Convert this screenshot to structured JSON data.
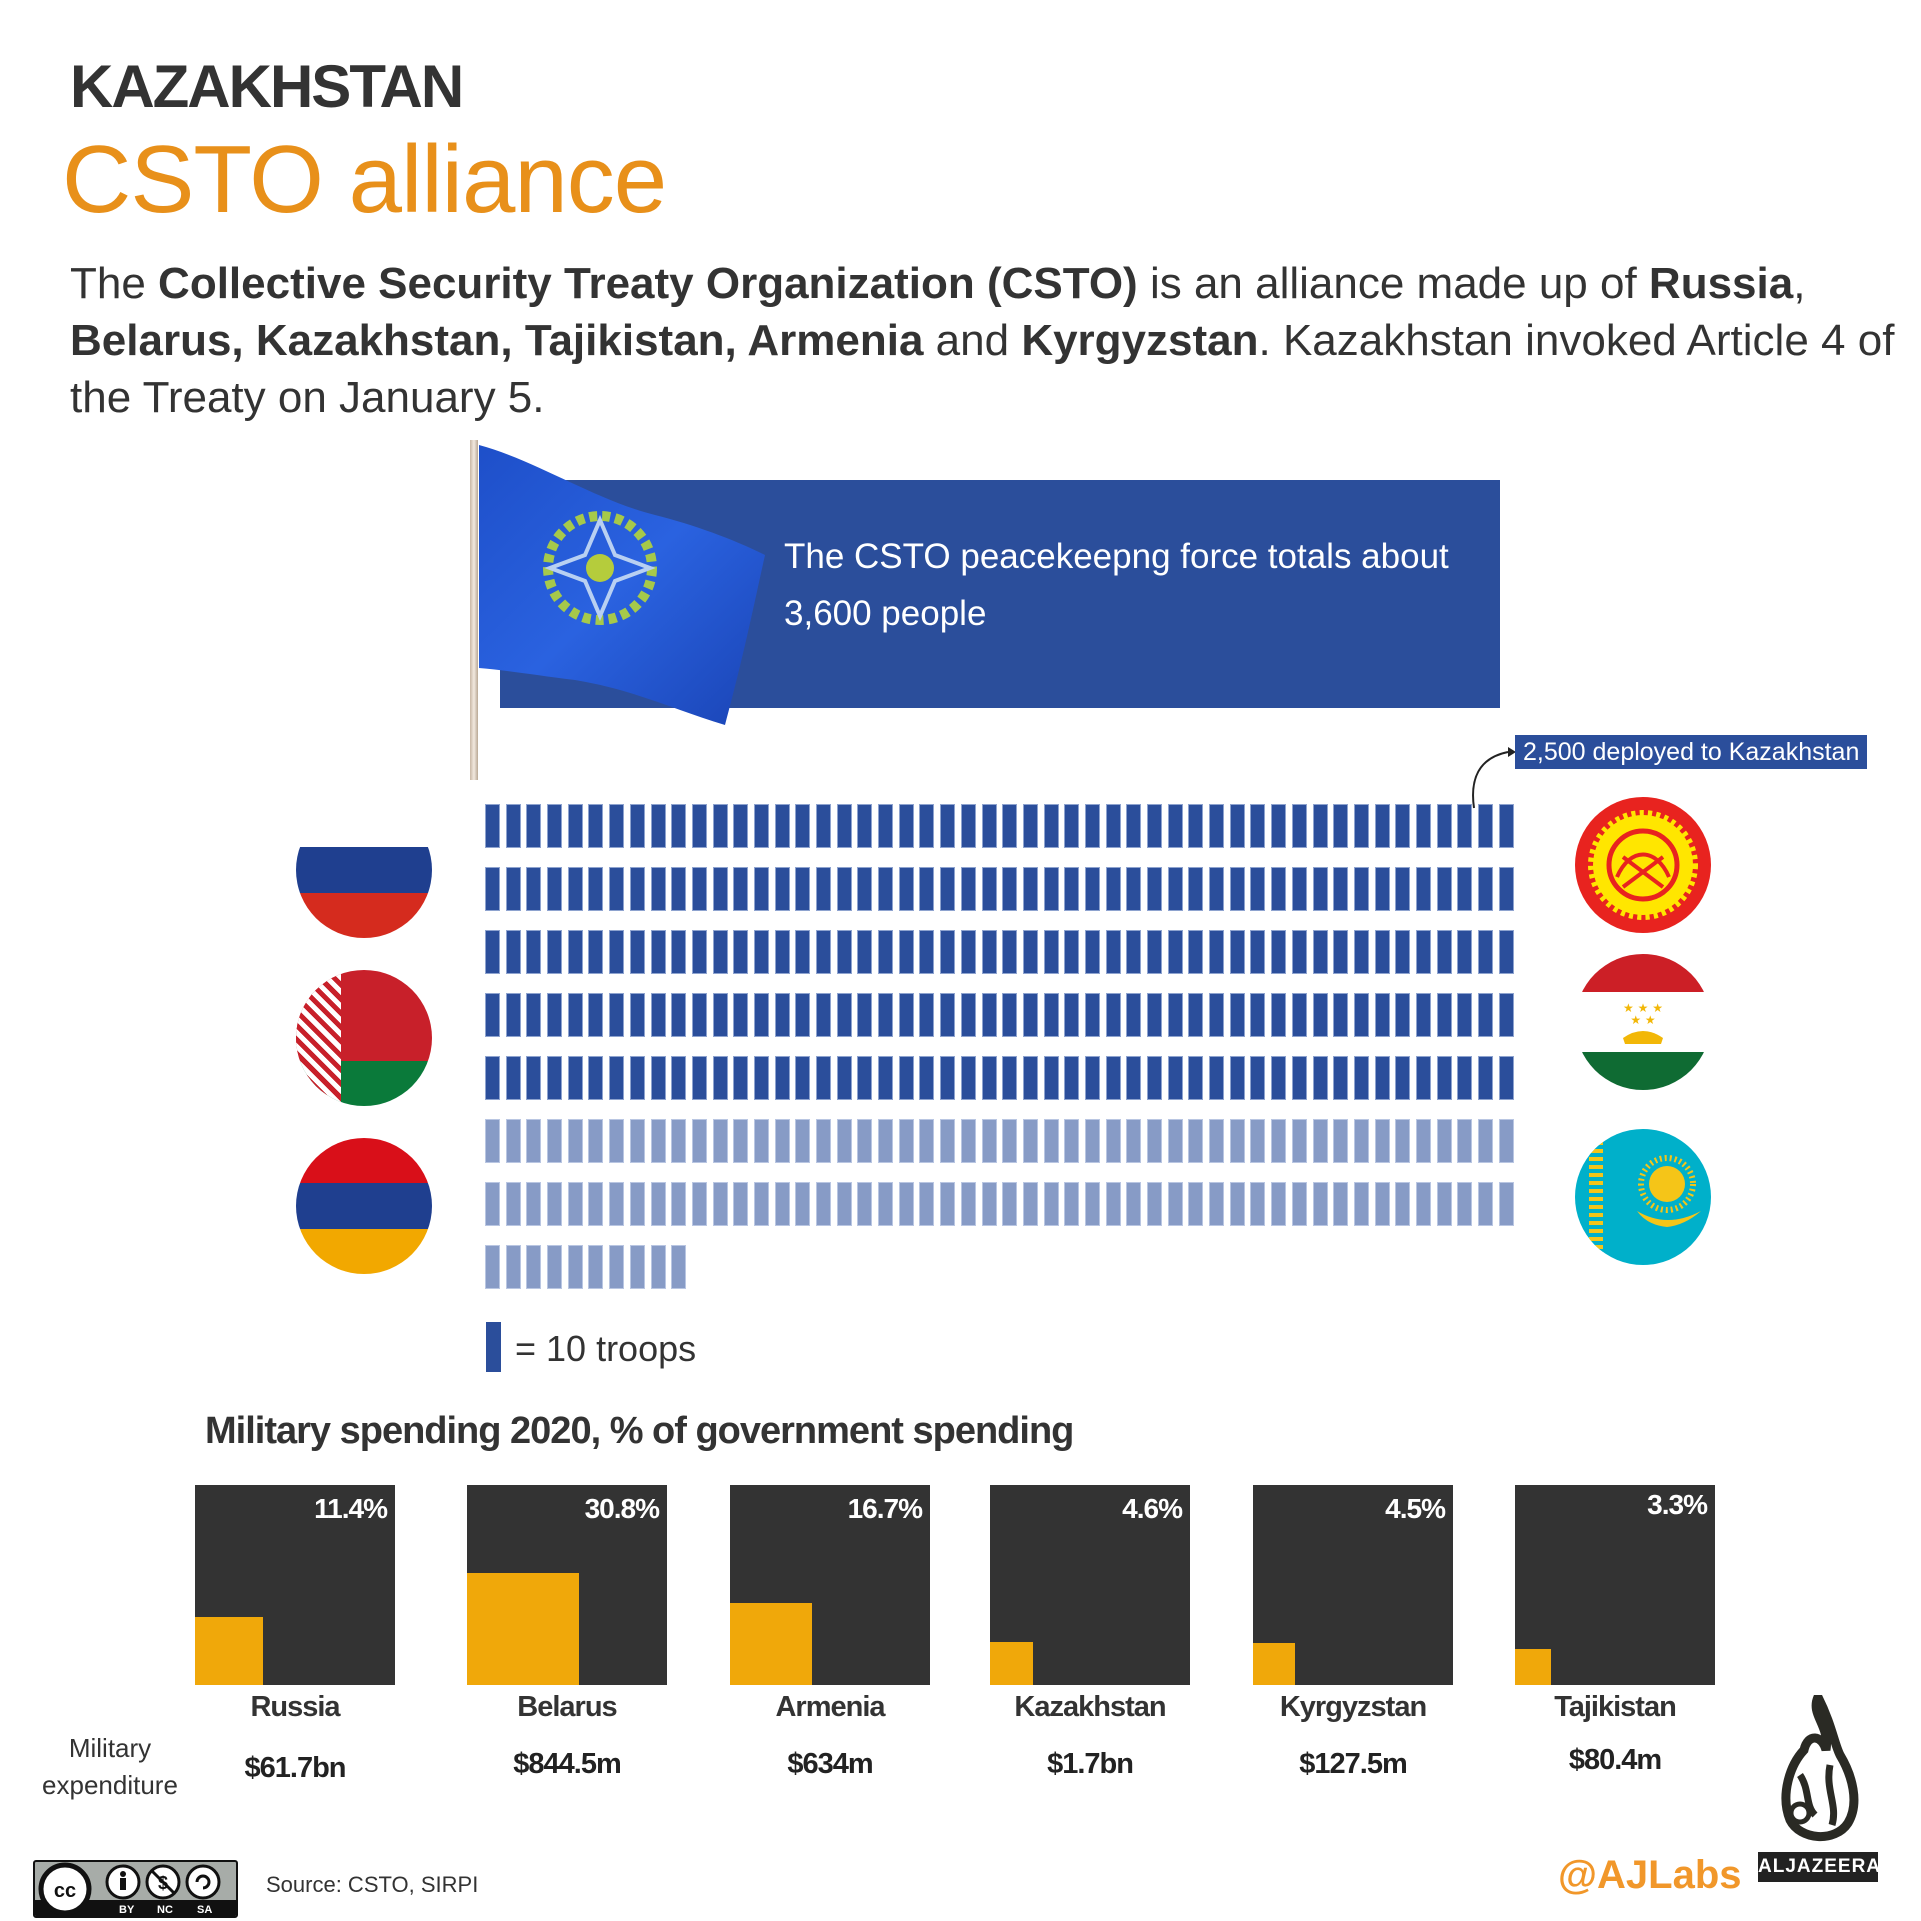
{
  "header": {
    "kicker": "KAZAKHSTAN",
    "title": "CSTO alliance"
  },
  "intro": {
    "p1": "The ",
    "b1": "Collective Security Treaty Organization (CSTO)",
    "p2": " is an alliance made up of ",
    "b2": "Russia",
    "p3": ", ",
    "b3": "Belarus, Kazakhstan, Tajikistan, Armenia",
    "p4": " and ",
    "b4": "Kyrgyzstan",
    "p5": ". Kazakhstan invoked Article 4 of the Treaty on January 5."
  },
  "info_box": {
    "text": "The CSTO peacekeepng force totals about 3,600 people"
  },
  "callout": {
    "text": "2,500 deployed to Kazakhstan"
  },
  "legend": {
    "text": "= 10 troops"
  },
  "flags_left": [
    "Russia",
    "Belarus",
    "Armenia"
  ],
  "flags_right": [
    "Kyrgyzstan",
    "Tajikistan",
    "Kazakhstan"
  ],
  "spending": {
    "title": "Military spending 2020, % of government spending",
    "expenditure_label": "Military expenditure",
    "countries": [
      {
        "name": "Russia",
        "pct": "11.4%",
        "value": "$61.7bn"
      },
      {
        "name": "Belarus",
        "pct": "30.8%",
        "value": "$844.5m"
      },
      {
        "name": "Armenia",
        "pct": "16.7%",
        "value": "$634m"
      },
      {
        "name": "Kazakhstan",
        "pct": "4.6%",
        "value": "$1.7bn"
      },
      {
        "name": "Kyrgyzstan",
        "pct": "4.5%",
        "value": "$127.5m"
      },
      {
        "name": "Tajikistan",
        "pct": "3.3%",
        "value": "$80.4m"
      }
    ]
  },
  "footer": {
    "source": "Source: CSTO, SIRPI",
    "handle": "@AJLabs",
    "brand": "ALJAZEERA",
    "license": [
      "BY",
      "NC",
      "SA"
    ]
  },
  "colors": {
    "accent_orange": "#e8901a",
    "csto_blue": "#2b4e9b",
    "light_blue": "#879bc6",
    "spend_bg": "#333333",
    "spend_fill": "#f0a80a"
  },
  "chart_data": [
    {
      "type": "waffle",
      "title": "The CSTO peacekeepng force totals about 3,600 people",
      "unit": "= 10 troops",
      "units_per_row": 50,
      "series": [
        {
          "name": "Deployed to Kazakhstan",
          "value": 2500,
          "units": 250,
          "color": "#2b4e9b"
        },
        {
          "name": "Remaining force",
          "value": 1100,
          "units": 110,
          "color": "#879bc6"
        }
      ],
      "total": 3600,
      "annotation": "2,500 deployed to Kazakhstan"
    },
    {
      "type": "bar",
      "title": "Military spending 2020, % of government spending",
      "categories": [
        "Russia",
        "Belarus",
        "Armenia",
        "Kazakhstan",
        "Kyrgyzstan",
        "Tajikistan"
      ],
      "values": [
        11.4,
        30.8,
        16.7,
        4.6,
        4.5,
        3.3
      ],
      "ylabel": "% of government spending",
      "secondary": {
        "label": "Military expenditure",
        "values": [
          "$61.7bn",
          "$844.5m",
          "$634m",
          "$1.7bn",
          "$127.5m",
          "$80.4m"
        ]
      },
      "source": "CSTO, SIRPI"
    }
  ]
}
